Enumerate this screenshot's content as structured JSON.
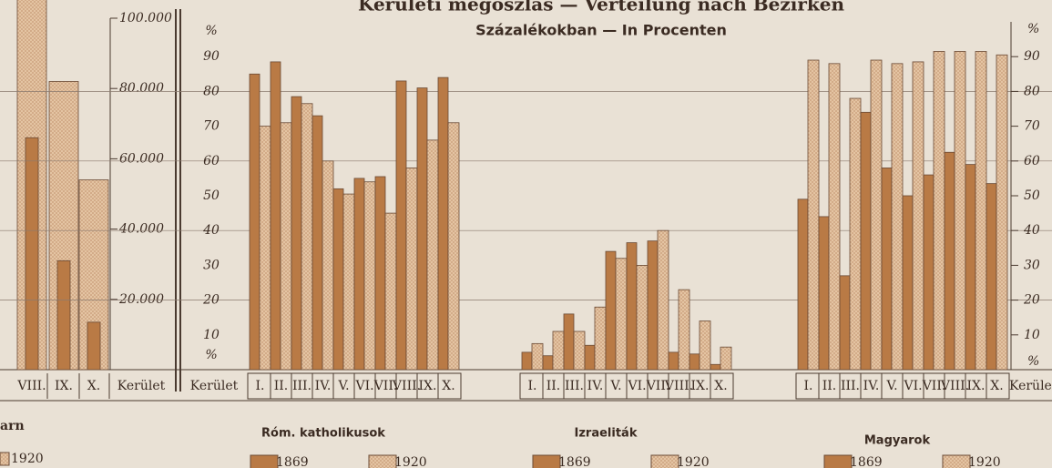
{
  "title": "Kerületi megoszlás — Verteilung nach Bezirken",
  "subtitle": "Százalékokban — In Procenten",
  "chart_data": [
    {
      "type": "bar",
      "legend_title": "arn",
      "xlabel": "Kerület",
      "categories": [
        "VIII.",
        "IX.",
        "X."
      ],
      "series": [
        {
          "color": "#b97a45",
          "values": [
            66000,
            31000,
            13500
          ]
        },
        {
          "name": "1920",
          "color": "#e6c7a6",
          "values": [
            110000,
            82000,
            54000
          ]
        }
      ],
      "ylim": [
        0,
        100000
      ],
      "yticks": [
        {
          "value": 20000,
          "label": "20.000"
        },
        {
          "value": 40000,
          "label": "40.000"
        },
        {
          "value": 60000,
          "label": "60.000"
        },
        {
          "value": 80000,
          "label": "80.000"
        },
        {
          "value": 100000,
          "label": "100.000"
        }
      ]
    },
    {
      "type": "grouped_bar",
      "ylabel": "%",
      "xlabel": "Kerület",
      "xlabel_right": "Kerüle",
      "ylim": [
        0,
        100
      ],
      "yticks": [
        10,
        20,
        30,
        40,
        50,
        60,
        70,
        80,
        90
      ],
      "grid": [
        20,
        40,
        60,
        80
      ],
      "groups": [
        {
          "title": "Róm. katholikusok",
          "categories": [
            "I.",
            "II.",
            "III.",
            "IV.",
            "V.",
            "VI.",
            "VII.",
            "VIII.",
            "IX.",
            "X."
          ],
          "series": [
            {
              "name": "1869",
              "color": "#b97a45",
              "values": [
                85,
                88.5,
                78.5,
                73,
                52,
                55,
                55.5,
                83,
                81,
                84
              ]
            },
            {
              "name": "1920",
              "color": "#e6c7a6",
              "values": [
                70,
                71,
                76.5,
                60,
                50.5,
                54,
                45,
                58,
                66,
                71
              ]
            }
          ]
        },
        {
          "title": "Izraeliták",
          "categories": [
            "I.",
            "II.",
            "III.",
            "IV.",
            "V.",
            "VI.",
            "VII.",
            "VIII.",
            "IX.",
            "X."
          ],
          "series": [
            {
              "name": "1869",
              "color": "#b97a45",
              "values": [
                5,
                4,
                16,
                7,
                34,
                36.5,
                37,
                5,
                4.5,
                1.5
              ]
            },
            {
              "name": "1920",
              "color": "#e6c7a6",
              "values": [
                7.5,
                11,
                11,
                18,
                32,
                30,
                40,
                23,
                14,
                6.5
              ]
            }
          ]
        },
        {
          "title": "Magyarok",
          "categories": [
            "I.",
            "II.",
            "III.",
            "IV.",
            "V.",
            "VI.",
            "VII.",
            "VIII.",
            "IX.",
            "X."
          ],
          "series": [
            {
              "name": "1869",
              "color": "#b97a45",
              "values": [
                49,
                44,
                27,
                74,
                58,
                50,
                56,
                62.5,
                59,
                53.5
              ]
            },
            {
              "name": "1920",
              "color": "#e6c7a6",
              "values": [
                89,
                88,
                78,
                89,
                88,
                88.5,
                91.5,
                91.5,
                91.5,
                90.5
              ]
            }
          ]
        }
      ]
    }
  ]
}
